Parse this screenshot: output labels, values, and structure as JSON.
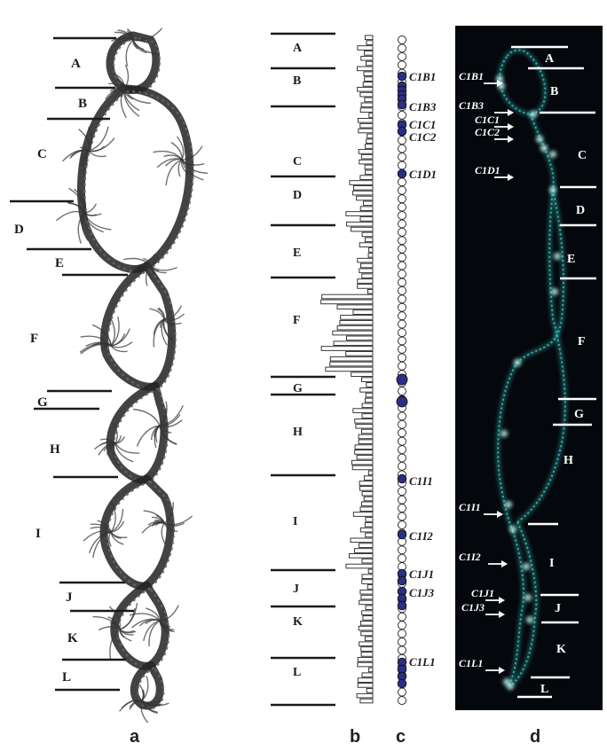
{
  "bands": [
    "A",
    "B",
    "C",
    "D",
    "E",
    "F",
    "G",
    "H",
    "I",
    "J",
    "K",
    "L"
  ],
  "panel_labels": {
    "a": "a",
    "b": "b",
    "c": "c",
    "d": "d"
  },
  "markers": [
    "C1B1",
    "C1B3",
    "C1C1",
    "C1C2",
    "C1D1",
    "C1I1",
    "C1I2",
    "C1J1",
    "C1J3",
    "C1L1"
  ],
  "colors": {
    "ink": "#1a1a1a",
    "dot_fill": "#2b2f86",
    "fluor": "#3fd6d2",
    "dark_bg": "#04080c"
  }
}
